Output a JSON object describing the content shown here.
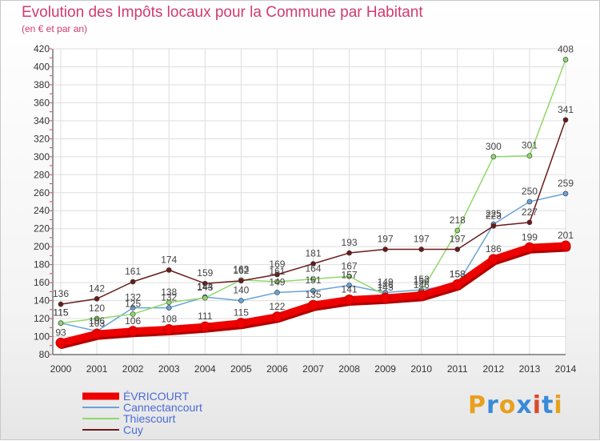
{
  "title": "Evolution des Impôts locaux pour la Commune par Habitant",
  "subtitle": "(en € et par an)",
  "logo_text": "Proxiti",
  "chart_data": {
    "type": "line",
    "title": "Evolution des Impôts locaux pour la Commune par Habitant",
    "subtitle": "(en € et par an)",
    "x": [
      "2000",
      "2001",
      "2002",
      "2003",
      "2004",
      "2005",
      "2006",
      "2007",
      "2008",
      "2009",
      "2010",
      "2011",
      "2012",
      "2013",
      "2014"
    ],
    "y_ticks": [
      "80",
      "100",
      "120",
      "140",
      "160",
      "180",
      "200",
      "220",
      "240",
      "260",
      "280",
      "300",
      "320",
      "340",
      "360",
      "380",
      "400",
      "420"
    ],
    "ylim": [
      80,
      420
    ],
    "grid": true,
    "legend": "bottom-left",
    "series": [
      {
        "name": "ÉVRICOURT",
        "color": "#ee0000",
        "width": 9,
        "values": [
          93,
          103,
          106,
          108,
          111,
          115,
          122,
          135,
          141,
          143,
          146,
          158,
          186,
          199,
          201
        ]
      },
      {
        "name": "Cannectancourt",
        "color": "#6aa3d8",
        "width": 1.5,
        "values": [
          115,
          106,
          132,
          132,
          144,
          140,
          149,
          151,
          157,
          149,
          152,
          158,
          225,
          250,
          259
        ]
      },
      {
        "name": "Thiescourt",
        "color": "#8fd86a",
        "width": 1.5,
        "values": [
          115,
          120,
          125,
          138,
          143,
          163,
          161,
          164,
          167,
          146,
          150,
          218,
          300,
          301,
          408
        ]
      },
      {
        "name": "Cuy",
        "color": "#6b1a1a",
        "width": 1.5,
        "values": [
          136,
          142,
          161,
          174,
          159,
          162,
          169,
          181,
          193,
          197,
          197,
          197,
          223,
          227,
          341
        ]
      }
    ]
  },
  "logo_colors": [
    "#e8a020",
    "#3a8ad8",
    "#e8a020",
    "#3a8ad8",
    "#d84a2a",
    "#3a8ad8",
    "#e8a020"
  ]
}
